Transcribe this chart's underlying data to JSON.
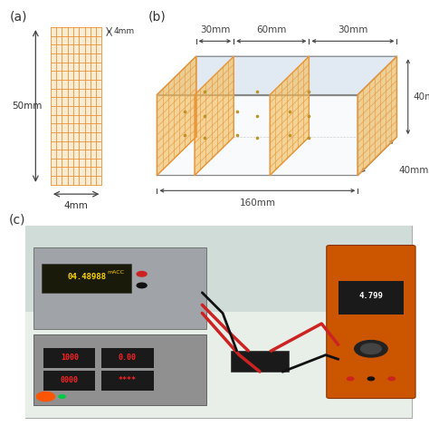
{
  "panel_label_a": "(a)",
  "panel_label_b": "(b)",
  "panel_label_c": "(c)",
  "grid_color": "#E8943A",
  "grid_bg": "#F7D8A8",
  "box_line": "#888888",
  "box_face": "#F0F4F8",
  "top_face": "#DCE6F0",
  "side_face": "#E4EAF4",
  "panel_fill": "#F2C060",
  "dot_color": "#C8A020",
  "ann_color": "#444444",
  "label_fontsize": 10,
  "ann_fs": 7.5,
  "photo_bg": "#C8D8CC",
  "photo_light": "#E0EDE8",
  "instrument_gray": "#B0B0B0",
  "instrument_dark": "#888888",
  "display_bg": "#1A1A1A",
  "display_yellow": "#FFD700",
  "display_red": "#FF2222",
  "multimeter_orange": "#CC5500",
  "wire_red": "#CC2222",
  "wire_black": "#111111"
}
